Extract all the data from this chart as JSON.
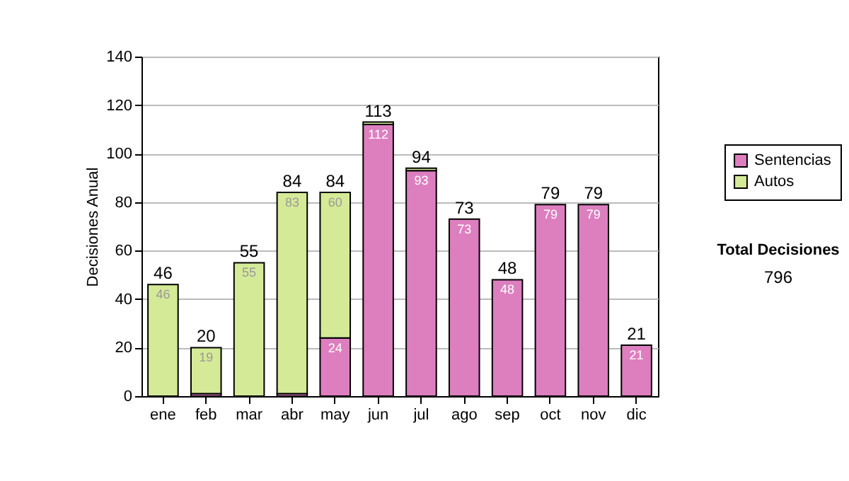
{
  "chart_data": {
    "type": "bar",
    "stacked": true,
    "ylabel": "Decisiones Anual",
    "categories": [
      "ene",
      "feb",
      "mar",
      "abr",
      "may",
      "jun",
      "jul",
      "ago",
      "sep",
      "oct",
      "nov",
      "dic"
    ],
    "series": [
      {
        "name": "Sentencias",
        "color": "#dd7fbf",
        "values": [
          null,
          1,
          null,
          1,
          24,
          112,
          93,
          73,
          48,
          79,
          79,
          21
        ],
        "value_labels": [
          null,
          null,
          null,
          null,
          "24",
          "112",
          "93",
          "73",
          "48",
          "79",
          "79",
          "21"
        ]
      },
      {
        "name": "Autos",
        "color": "#d5ea97",
        "values": [
          46,
          19,
          55,
          83,
          60,
          1,
          1,
          null,
          null,
          null,
          null,
          null
        ],
        "value_labels": [
          "46",
          "19",
          "55",
          "83",
          "60",
          null,
          null,
          null,
          null,
          null,
          null,
          null
        ]
      }
    ],
    "totals": [
      "46",
      "20",
      "55",
      "84",
      "84",
      "113",
      "94",
      "73",
      "48",
      "79",
      "79",
      "21"
    ],
    "ylim": [
      0,
      140
    ],
    "yticks": [
      0,
      20,
      40,
      60,
      80,
      100,
      120,
      140
    ],
    "grid": "y",
    "legend": "right",
    "annotations": [
      "Total Decisiones",
      "796"
    ]
  }
}
